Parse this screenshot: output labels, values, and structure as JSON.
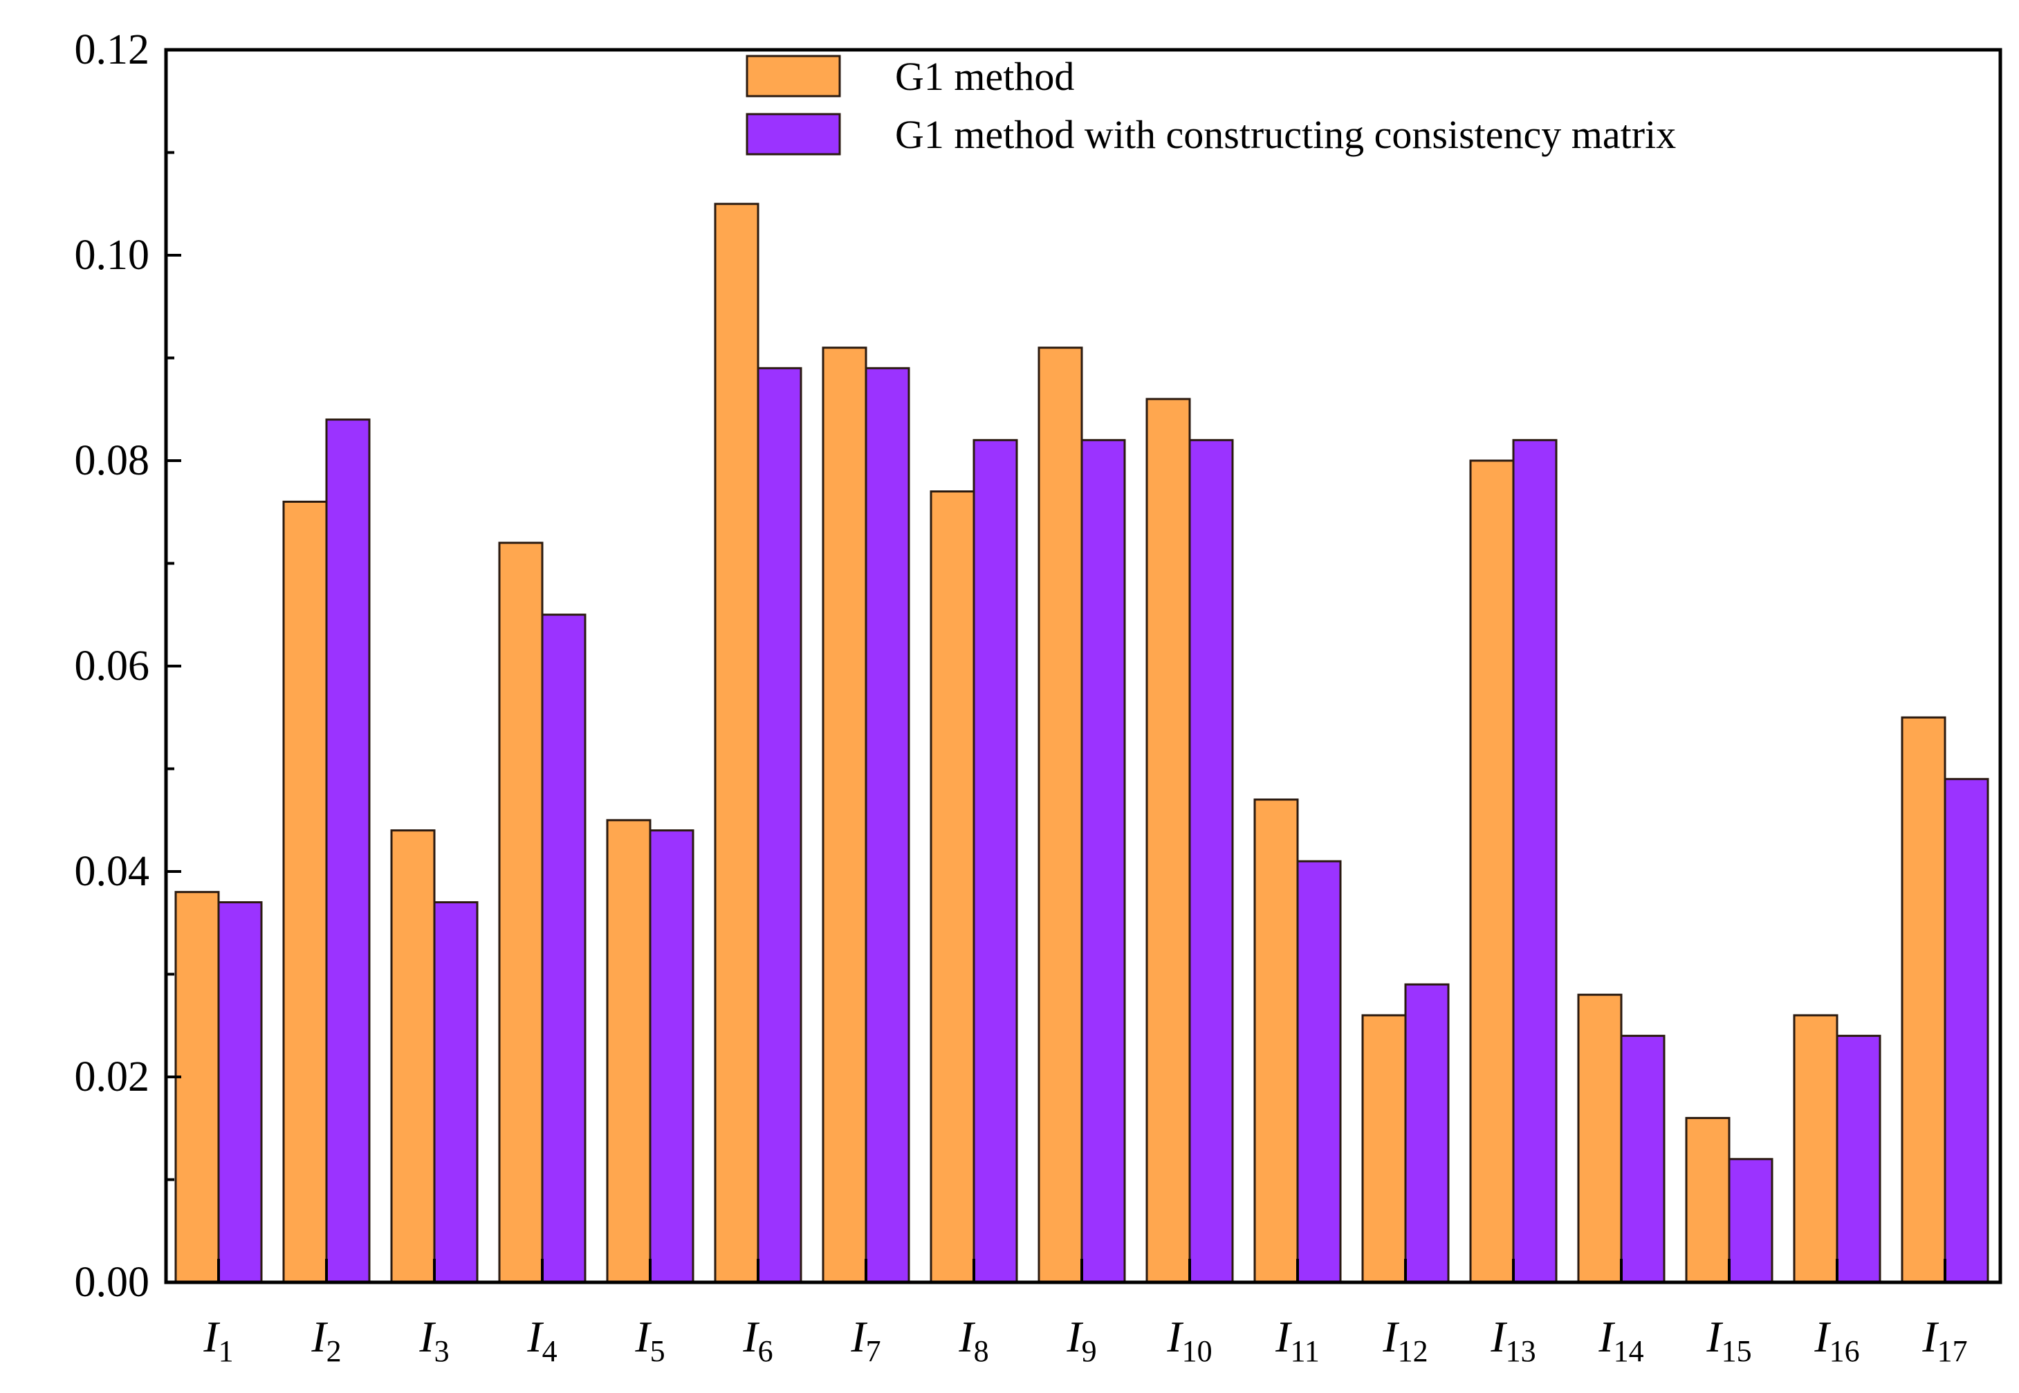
{
  "chart_data": {
    "type": "bar",
    "title": "",
    "xlabel": "",
    "ylabel": "",
    "ylim": [
      0,
      0.12
    ],
    "yticks": [
      "0.00",
      "0.02",
      "0.04",
      "0.06",
      "0.08",
      "0.10",
      "0.12"
    ],
    "categories": [
      {
        "base": "I",
        "sub": "1"
      },
      {
        "base": "I",
        "sub": "2"
      },
      {
        "base": "I",
        "sub": "3"
      },
      {
        "base": "I",
        "sub": "4"
      },
      {
        "base": "I",
        "sub": "5"
      },
      {
        "base": "I",
        "sub": "6"
      },
      {
        "base": "I",
        "sub": "7"
      },
      {
        "base": "I",
        "sub": "8"
      },
      {
        "base": "I",
        "sub": "9"
      },
      {
        "base": "I",
        "sub": "10"
      },
      {
        "base": "I",
        "sub": "11"
      },
      {
        "base": "I",
        "sub": "12"
      },
      {
        "base": "I",
        "sub": "13"
      },
      {
        "base": "I",
        "sub": "14"
      },
      {
        "base": "I",
        "sub": "15"
      },
      {
        "base": "I",
        "sub": "16"
      },
      {
        "base": "I",
        "sub": "17"
      }
    ],
    "series": [
      {
        "name": "G1 method",
        "color": "#FFA74F",
        "values": [
          0.038,
          0.076,
          0.044,
          0.072,
          0.045,
          0.105,
          0.091,
          0.077,
          0.091,
          0.086,
          0.047,
          0.026,
          0.08,
          0.028,
          0.016,
          0.026,
          0.055
        ]
      },
      {
        "name": "G1 method with constructing consistency matrix",
        "color": "#9B33FF",
        "values": [
          0.037,
          0.084,
          0.037,
          0.065,
          0.044,
          0.089,
          0.089,
          0.082,
          0.082,
          0.082,
          0.041,
          0.029,
          0.082,
          0.024,
          0.012,
          0.024,
          0.049
        ]
      }
    ],
    "legend_position": "top-center",
    "grid": false
  }
}
